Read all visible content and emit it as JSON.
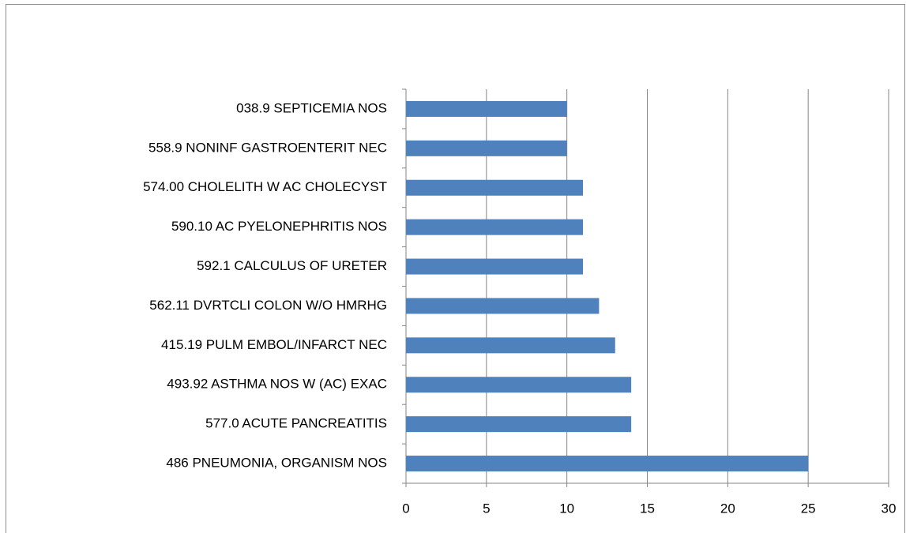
{
  "chart_data": {
    "type": "bar",
    "orientation": "horizontal",
    "categories": [
      "038.9 SEPTICEMIA NOS",
      "558.9 NONINF GASTROENTERIT NEC",
      "574.00 CHOLELITH W AC CHOLECYST",
      "590.10 AC PYELONEPHRITIS NOS",
      "592.1 CALCULUS OF URETER",
      "562.11 DVRTCLI COLON W/O HMRHG",
      "415.19 PULM EMBOL/INFARCT NEC",
      "493.92 ASTHMA NOS W (AC) EXAC",
      "577.0 ACUTE PANCREATITIS",
      "486 PNEUMONIA, ORGANISM NOS"
    ],
    "values": [
      10,
      10,
      11,
      11,
      11,
      12,
      13,
      14,
      14,
      25
    ],
    "color": "#4f81bd",
    "xlim": [
      0,
      30
    ],
    "xticks": [
      0,
      5,
      10,
      15,
      20,
      25,
      30
    ],
    "grid": true
  }
}
